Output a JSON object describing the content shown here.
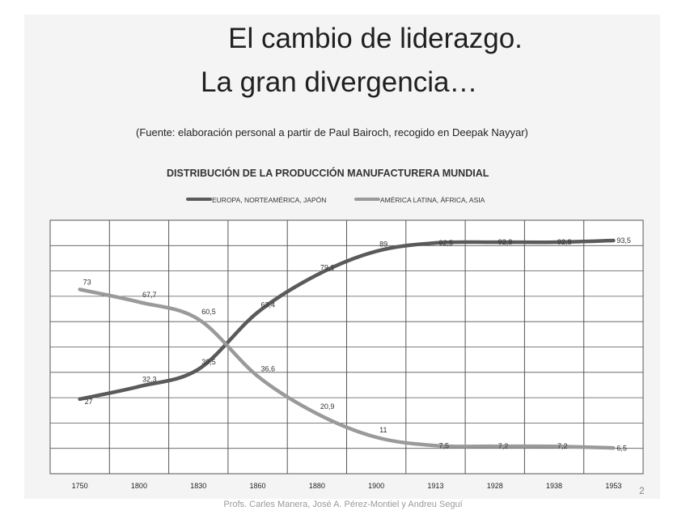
{
  "slide": {
    "title_line1": "El cambio de liderazgo.",
    "title_line2": "La gran divergencia…",
    "source": "(Fuente: elaboración personal a partir de Paul Bairoch, recogido en Deepak Nayyar)",
    "slide_number": "2",
    "footer": "Profs. Carles Manera, José A. Pérez-Montiel y Andreu Seguí"
  },
  "colors": {
    "europe_line": "#5a5a5a",
    "latam_line": "#9a9a9a",
    "grid": "#555555"
  },
  "chart_data": {
    "type": "line",
    "title": "DISTRIBUCIÓN DE LA PRODUCCIÓN MANUFACTURERA MUNDIAL",
    "categories": [
      "1750",
      "1800",
      "1830",
      "1860",
      "1880",
      "1900",
      "1913",
      "1928",
      "1938",
      "1953"
    ],
    "series": [
      {
        "name": "EUROPA, NORTEAMÉRICA, JAPÓN",
        "values": [
          27,
          32.3,
          39.5,
          63.4,
          79.1,
          89,
          92.5,
          92.8,
          92.8,
          93.5
        ],
        "labels": [
          "27",
          "32,3",
          "39,5",
          "63,4",
          "79,1",
          "89",
          "92,5",
          "92,8",
          "92,8",
          "93,5"
        ]
      },
      {
        "name": "AMÉRICA LATINA, ÁFRICA, ASIA",
        "values": [
          73,
          67.7,
          60.5,
          36.6,
          20.9,
          11,
          7.5,
          7.2,
          7.2,
          6.5
        ],
        "labels": [
          "73",
          "67,7",
          "60,5",
          "36,6",
          "20,9",
          "11",
          "7,5",
          "7,2",
          "7,2",
          "6,5"
        ]
      }
    ],
    "ylim": [
      0,
      100
    ],
    "grid": true,
    "legend_position": "top"
  }
}
